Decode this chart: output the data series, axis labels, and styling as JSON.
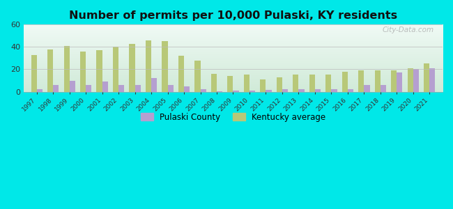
{
  "title": "Number of permits per 10,000 Pulaski, KY residents",
  "years": [
    1997,
    1998,
    1999,
    2000,
    2001,
    2002,
    2003,
    2004,
    2005,
    2006,
    2007,
    2008,
    2009,
    2010,
    2011,
    2012,
    2013,
    2014,
    2015,
    2016,
    2017,
    2018,
    2019,
    2020,
    2021
  ],
  "pulaski": [
    2,
    6,
    10,
    6,
    9,
    6,
    6,
    12,
    6,
    5,
    2,
    0.5,
    1,
    1,
    1.5,
    2,
    2.5,
    2.5,
    2,
    2,
    6,
    6,
    17,
    20,
    21
  ],
  "kentucky": [
    33,
    38,
    41,
    36,
    37,
    40,
    43,
    46,
    45,
    32,
    28,
    16,
    14,
    15,
    11,
    13,
    15,
    15,
    15,
    18,
    19,
    19,
    19,
    21,
    25
  ],
  "pulaski_color": "#b59fd0",
  "kentucky_color": "#b8c878",
  "background_outer": "#00e8e8",
  "background_top": "#f0faf5",
  "background_bottom": "#d0ead8",
  "ylim": [
    0,
    60
  ],
  "yticks": [
    0,
    20,
    40,
    60
  ],
  "bar_width": 0.35,
  "legend_pulaski": "Pulaski County",
  "legend_kentucky": "Kentucky average",
  "watermark": "City-Data.com"
}
